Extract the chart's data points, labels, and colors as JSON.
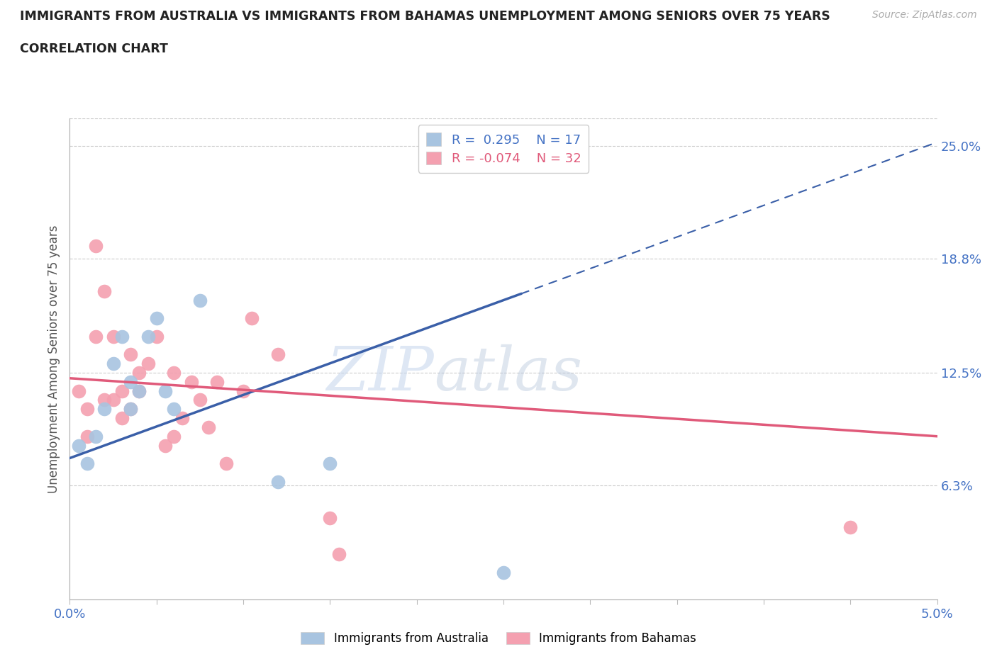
{
  "title": "IMMIGRANTS FROM AUSTRALIA VS IMMIGRANTS FROM BAHAMAS UNEMPLOYMENT AMONG SENIORS OVER 75 YEARS",
  "subtitle": "CORRELATION CHART",
  "source": "Source: ZipAtlas.com",
  "ylabel": "Unemployment Among Seniors over 75 years",
  "xlim": [
    0.0,
    5.0
  ],
  "ylim": [
    0.0,
    26.5
  ],
  "x_ticks": [
    0.0,
    0.5,
    1.0,
    1.5,
    2.0,
    2.5,
    3.0,
    3.5,
    4.0,
    4.5,
    5.0
  ],
  "right_y_ticks": [
    6.3,
    12.5,
    18.8,
    25.0
  ],
  "right_y_tick_labels": [
    "6.3%",
    "12.5%",
    "18.8%",
    "25.0%"
  ],
  "australia_color": "#a8c4e0",
  "bahamas_color": "#f4a0b0",
  "australia_line_color": "#3a5fa8",
  "bahamas_line_color": "#e05a7a",
  "R_australia": 0.295,
  "N_australia": 17,
  "R_bahamas": -0.074,
  "N_bahamas": 32,
  "watermark_zip": "ZIP",
  "watermark_atlas": "atlas",
  "aus_line_x0": 0.0,
  "aus_line_y0": 7.8,
  "aus_line_x1": 5.0,
  "aus_line_y1": 25.2,
  "bah_line_x0": 0.0,
  "bah_line_y0": 12.2,
  "bah_line_x1": 5.0,
  "bah_line_y1": 9.0,
  "aus_solid_x0": 0.0,
  "aus_solid_x1": 2.6,
  "australia_x": [
    0.05,
    0.1,
    0.15,
    0.2,
    0.25,
    0.3,
    0.35,
    0.35,
    0.4,
    0.45,
    0.5,
    0.55,
    0.6,
    0.75,
    1.2,
    1.5,
    2.5
  ],
  "australia_y": [
    8.5,
    7.5,
    9.0,
    10.5,
    13.0,
    14.5,
    12.0,
    10.5,
    11.5,
    14.5,
    15.5,
    11.5,
    10.5,
    16.5,
    6.5,
    7.5,
    1.5
  ],
  "bahamas_x": [
    0.05,
    0.1,
    0.1,
    0.15,
    0.15,
    0.2,
    0.2,
    0.25,
    0.25,
    0.3,
    0.3,
    0.35,
    0.35,
    0.4,
    0.4,
    0.45,
    0.5,
    0.55,
    0.6,
    0.6,
    0.65,
    0.7,
    0.75,
    0.8,
    0.85,
    0.9,
    1.0,
    1.05,
    1.2,
    1.5,
    1.55,
    4.5
  ],
  "bahamas_y": [
    11.5,
    10.5,
    9.0,
    14.5,
    19.5,
    17.0,
    11.0,
    14.5,
    11.0,
    11.5,
    10.0,
    13.5,
    10.5,
    11.5,
    12.5,
    13.0,
    14.5,
    8.5,
    12.5,
    9.0,
    10.0,
    12.0,
    11.0,
    9.5,
    12.0,
    7.5,
    11.5,
    15.5,
    13.5,
    4.5,
    2.5,
    4.0
  ]
}
